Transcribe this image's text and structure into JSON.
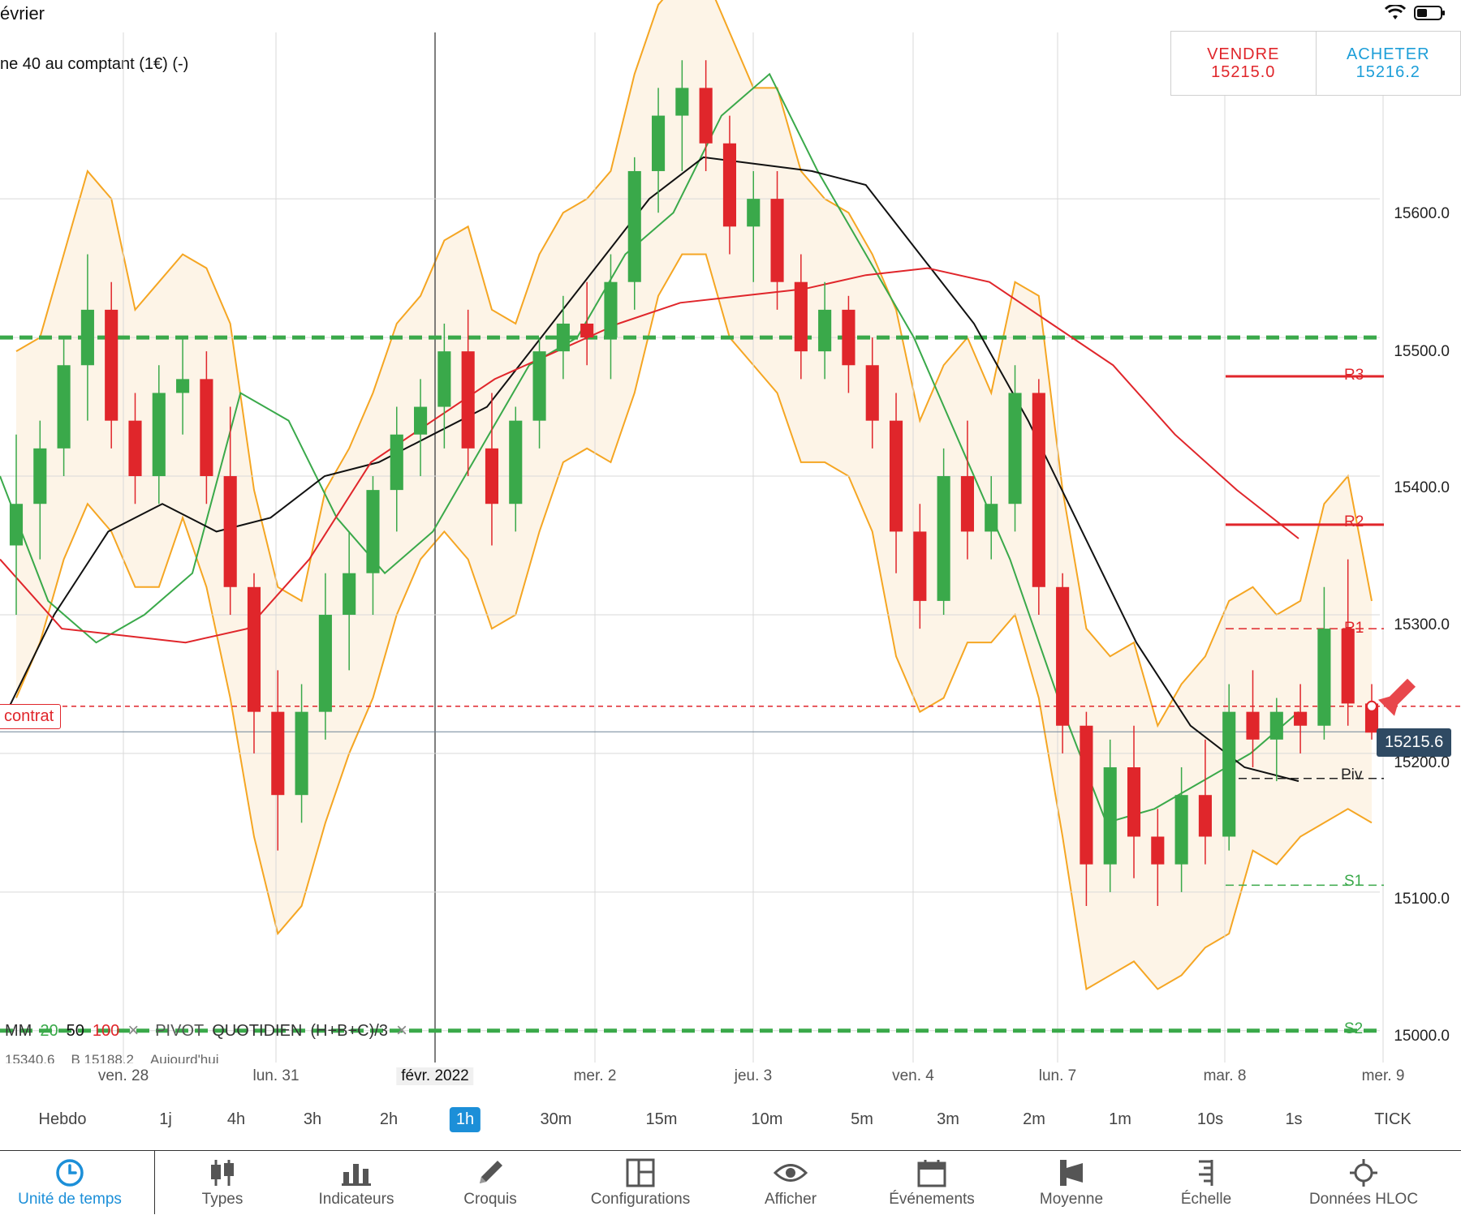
{
  "status_bar": {
    "title": "évrier"
  },
  "instrument": {
    "name": "ne 40 au comptant (1€) (-)"
  },
  "trade": {
    "sell_label": "VENDRE",
    "sell_price": "15215.0",
    "buy_label": "ACHETER",
    "buy_price": "15216.2"
  },
  "price_axis": [
    "15600.0",
    "15500.0",
    "15400.0",
    "15300.0",
    "15200.0",
    "15100.0",
    "15000.0"
  ],
  "current_price": "15215.6",
  "contract_tag": "contrat",
  "pivots": {
    "r3": "R3",
    "r2": "R2",
    "r1": "R1",
    "piv": "Piv",
    "s1": "S1",
    "s2": "S2"
  },
  "indicator_legend": {
    "mm": "MM",
    "p1": "20",
    "p2": "50",
    "p3": "100",
    "pivot": "PIVOT",
    "period": "QUOTIDIEN",
    "formula": "(H+B+C)/3",
    "close_symbol": "×"
  },
  "pivot_values": {
    "h": "15340.6",
    "b": "B 15188.2",
    "date": "Aujourd'hui"
  },
  "x_axis": [
    "ven. 28",
    "lun. 31",
    "févr. 2022",
    "mer. 2",
    "jeu. 3",
    "ven. 4",
    "lun. 7",
    "mar. 8",
    "mer. 9"
  ],
  "timeframes": [
    "Hebdo",
    "1j",
    "4h",
    "3h",
    "2h",
    "1h",
    "30m",
    "15m",
    "10m",
    "5m",
    "3m",
    "2m",
    "1m",
    "10s",
    "1s",
    "TICK"
  ],
  "active_timeframe": "1h",
  "toolbar": [
    "Unité de temps",
    "Types",
    "Indicateurs",
    "Croquis",
    "Configurations",
    "Afficher",
    "Événements",
    "Moyenne",
    "Échelle",
    "Données HLOC"
  ],
  "colors": {
    "bull": "#3aa94a",
    "bear": "#e0262b",
    "accent": "#1c8fd8",
    "band": "#f5a623",
    "ma20": "#3aa94a",
    "ma50": "#111111",
    "ma100": "#e0262b"
  },
  "chart_data": {
    "type": "candlestick",
    "instrument": "ne 40 au comptant (1€)",
    "timeframe": "1h",
    "ylim": [
      14980,
      15720
    ],
    "y_ticks": [
      15000,
      15100,
      15200,
      15300,
      15400,
      15500,
      15600
    ],
    "x_ticks": [
      "ven. 28",
      "lun. 31",
      "févr. 2022",
      "mer. 2",
      "jeu. 3",
      "ven. 4",
      "lun. 7",
      "mar. 8",
      "mer. 9"
    ],
    "horizontal_levels": {
      "R3": 15472,
      "R2": 15365,
      "R1": 15290,
      "Piv": 15182,
      "S1": 15105,
      "S2": 15000,
      "green_dashed": [
        15500,
        15000
      ],
      "contract": 15234,
      "current": 15215.6
    },
    "series_ma": [
      {
        "name": "MM 20",
        "values": [
          15400,
          15310,
          15280,
          15300,
          15330,
          15460,
          15440,
          15370,
          15330,
          15360,
          15420,
          15480,
          15500,
          15560,
          15590,
          15660,
          15690,
          15620,
          15560,
          15500,
          15420,
          15340,
          15240,
          15150,
          15160,
          15180,
          15200,
          15230
        ]
      },
      {
        "name": "MM 50",
        "values": [
          15220,
          15300,
          15360,
          15380,
          15360,
          15370,
          15400,
          15410,
          15430,
          15450,
          15500,
          15550,
          15600,
          15630,
          15625,
          15620,
          15610,
          15560,
          15510,
          15440,
          15360,
          15280,
          15220,
          15190,
          15180
        ]
      },
      {
        "name": "MM 100",
        "values": [
          15340,
          15290,
          15285,
          15280,
          15290,
          15340,
          15410,
          15440,
          15470,
          15490,
          15510,
          15525,
          15530,
          15535,
          15545,
          15550,
          15540,
          15510,
          15480,
          15430,
          15390,
          15355
        ]
      }
    ],
    "candles": [
      [
        15350,
        15430,
        15300,
        15380
      ],
      [
        15380,
        15440,
        15340,
        15420
      ],
      [
        15420,
        15500,
        15400,
        15480
      ],
      [
        15480,
        15560,
        15440,
        15520
      ],
      [
        15520,
        15540,
        15420,
        15440
      ],
      [
        15440,
        15460,
        15380,
        15400
      ],
      [
        15400,
        15480,
        15380,
        15460
      ],
      [
        15460,
        15500,
        15430,
        15470
      ],
      [
        15470,
        15490,
        15380,
        15400
      ],
      [
        15400,
        15450,
        15300,
        15320
      ],
      [
        15320,
        15330,
        15200,
        15230
      ],
      [
        15230,
        15260,
        15130,
        15170
      ],
      [
        15170,
        15250,
        15150,
        15230
      ],
      [
        15230,
        15330,
        15210,
        15300
      ],
      [
        15300,
        15360,
        15260,
        15330
      ],
      [
        15330,
        15400,
        15300,
        15390
      ],
      [
        15390,
        15450,
        15360,
        15430
      ],
      [
        15430,
        15470,
        15400,
        15450
      ],
      [
        15450,
        15510,
        15420,
        15490
      ],
      [
        15490,
        15520,
        15400,
        15420
      ],
      [
        15420,
        15460,
        15350,
        15380
      ],
      [
        15380,
        15450,
        15360,
        15440
      ],
      [
        15440,
        15500,
        15420,
        15490
      ],
      [
        15490,
        15530,
        15470,
        15510
      ],
      [
        15510,
        15540,
        15480,
        15500
      ],
      [
        15500,
        15560,
        15470,
        15540
      ],
      [
        15540,
        15630,
        15520,
        15620
      ],
      [
        15620,
        15680,
        15590,
        15660
      ],
      [
        15660,
        15700,
        15620,
        15680
      ],
      [
        15680,
        15700,
        15620,
        15640
      ],
      [
        15640,
        15660,
        15560,
        15580
      ],
      [
        15580,
        15620,
        15540,
        15600
      ],
      [
        15600,
        15620,
        15520,
        15540
      ],
      [
        15540,
        15560,
        15470,
        15490
      ],
      [
        15490,
        15540,
        15470,
        15520
      ],
      [
        15520,
        15530,
        15460,
        15480
      ],
      [
        15480,
        15500,
        15420,
        15440
      ],
      [
        15440,
        15460,
        15330,
        15360
      ],
      [
        15360,
        15380,
        15290,
        15310
      ],
      [
        15310,
        15420,
        15300,
        15400
      ],
      [
        15400,
        15440,
        15340,
        15360
      ],
      [
        15360,
        15400,
        15340,
        15380
      ],
      [
        15380,
        15480,
        15360,
        15460
      ],
      [
        15460,
        15470,
        15300,
        15320
      ],
      [
        15320,
        15330,
        15200,
        15220
      ],
      [
        15220,
        15230,
        15090,
        15120
      ],
      [
        15120,
        15210,
        15100,
        15190
      ],
      [
        15190,
        15220,
        15110,
        15140
      ],
      [
        15140,
        15160,
        15090,
        15120
      ],
      [
        15120,
        15190,
        15100,
        15170
      ],
      [
        15170,
        15210,
        15120,
        15140
      ],
      [
        15140,
        15250,
        15130,
        15230
      ],
      [
        15230,
        15260,
        15190,
        15210
      ],
      [
        15210,
        15240,
        15180,
        15230
      ],
      [
        15230,
        15250,
        15200,
        15220
      ],
      [
        15220,
        15320,
        15210,
        15290
      ],
      [
        15290,
        15340,
        15220,
        15236
      ],
      [
        15236,
        15250,
        15210,
        15215
      ]
    ]
  }
}
